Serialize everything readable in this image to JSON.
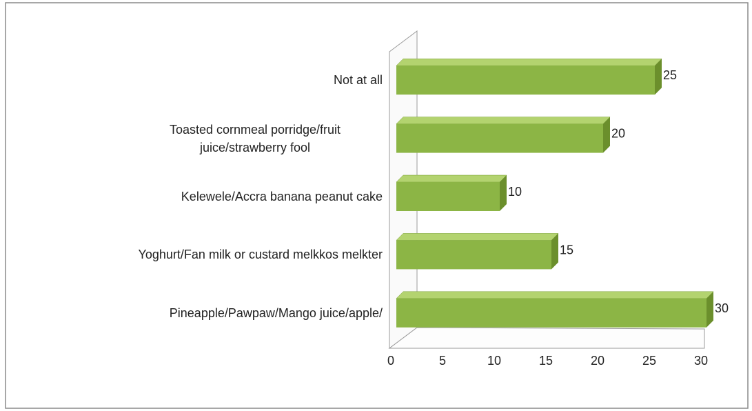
{
  "chart_data": {
    "type": "bar3d_horizontal",
    "categories": [
      "Not at all",
      "Toasted cornmeal porridge/fruit juice/strawberry fool",
      "Kelewele/Accra banana peanut cake",
      "Yoghurt/Fan milk or custard melkkos melkter",
      "Pineapple/Pawpaw/Mango juice/apple/"
    ],
    "values": [
      25,
      20,
      10,
      15,
      30
    ],
    "color": "#8cb545",
    "xlim": [
      0,
      30
    ],
    "xticks": [
      0,
      5,
      10,
      15,
      20,
      25,
      30
    ]
  }
}
